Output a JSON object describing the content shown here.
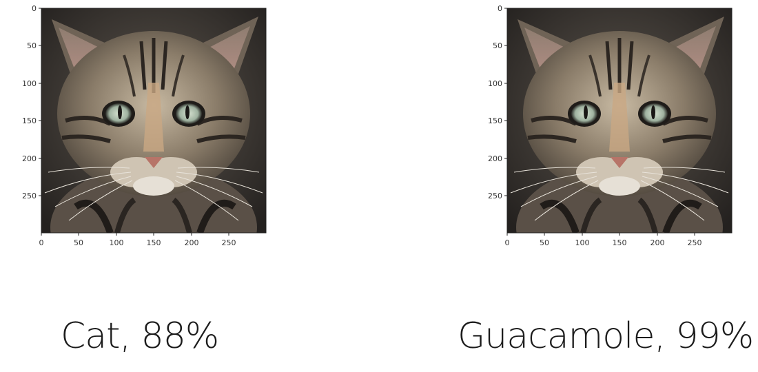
{
  "panels": [
    {
      "caption": "Cat, 88%",
      "x_ticks": [
        "0",
        "50",
        "100",
        "150",
        "200",
        "250"
      ],
      "y_ticks": [
        "0",
        "50",
        "100",
        "150",
        "200",
        "250"
      ]
    },
    {
      "caption": "Guacamole, 99%",
      "x_ticks": [
        "0",
        "50",
        "100",
        "150",
        "200",
        "250"
      ],
      "y_ticks": [
        "0",
        "50",
        "100",
        "150",
        "200",
        "250"
      ]
    }
  ],
  "colors": {
    "fur_light": "#b9ab93",
    "fur_mid": "#7a6d5c",
    "fur_dark": "#2f2a25",
    "ear_inner": "#a8837c",
    "eye": "#b8c7b3",
    "nose": "#c27f74",
    "background": "#3b3835"
  }
}
